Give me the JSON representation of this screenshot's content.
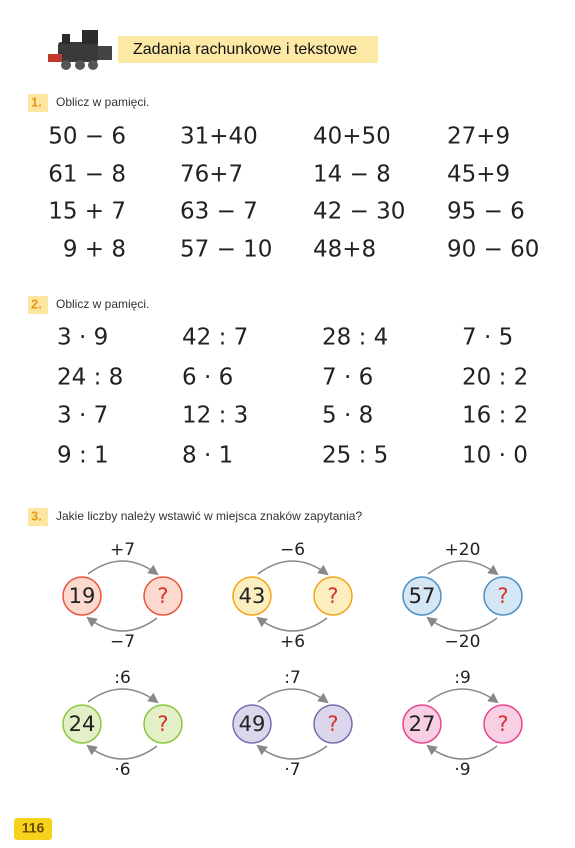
{
  "header": {
    "title": "Zadania rachunkowe i tekstowe"
  },
  "exercises": [
    {
      "number": "1.",
      "instruction": "Oblicz w pamięci.",
      "rows": [
        [
          "50 − 6",
          "31+40",
          "40+50",
          "27+9"
        ],
        [
          "61 − 8",
          "76+7",
          "14 − 8",
          "45+9"
        ],
        [
          "15 + 7",
          "63 − 7",
          "42 − 30",
          "95 − 6"
        ],
        [
          "9 + 8",
          "57 − 10",
          "48+8",
          "90 − 60"
        ]
      ]
    },
    {
      "number": "2.",
      "instruction": "Oblicz w pamięci.",
      "rows": [
        [
          "3 · 9",
          "42 : 7",
          "28 : 4",
          "7 · 5"
        ],
        [
          "24 : 8",
          "6 · 6",
          "7 · 6",
          "20 : 2"
        ],
        [
          "3 · 7",
          "12 : 3",
          "5 · 8",
          "16 : 2"
        ],
        [
          "9 : 1",
          "8 · 1",
          "25 : 5",
          "10 · 0"
        ]
      ]
    },
    {
      "number": "3.",
      "instruction": "Jakie liczby należy wstawić w miejsca znaków zapytania?",
      "diagrams": [
        {
          "top": "+7",
          "left": "19",
          "right": "?",
          "bottom": "−7"
        },
        {
          "top": "−6",
          "left": "43",
          "right": "?",
          "bottom": "+6"
        },
        {
          "top": "+20",
          "left": "57",
          "right": "?",
          "bottom": "−20"
        },
        {
          "top": ":6",
          "left": "24",
          "right": "?",
          "bottom": "·6"
        },
        {
          "top": ":7",
          "left": "49",
          "right": "?",
          "bottom": "·7"
        },
        {
          "top": ":9",
          "left": "27",
          "right": "?",
          "bottom": "·9"
        }
      ]
    }
  ],
  "page_number": "116"
}
